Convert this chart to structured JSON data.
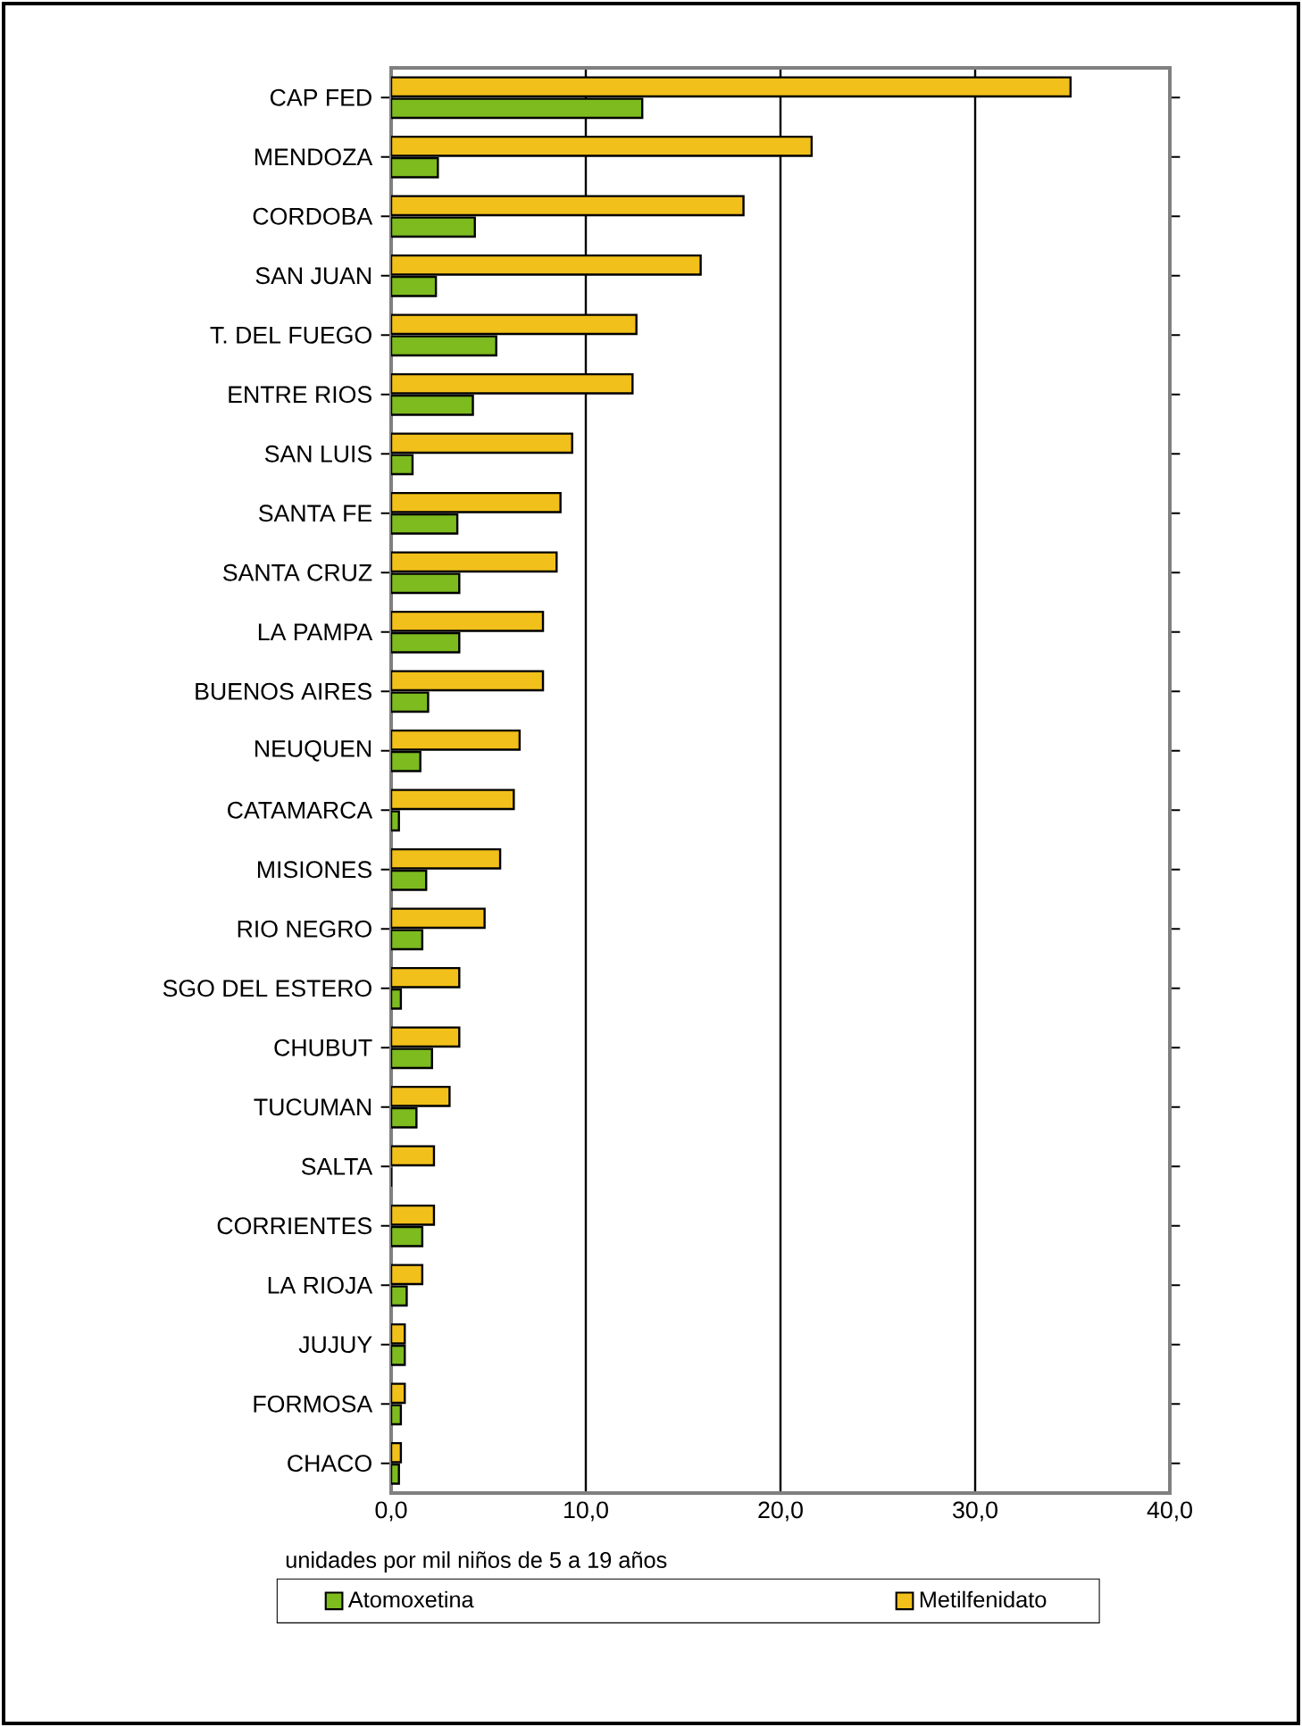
{
  "chart_data": {
    "type": "bar",
    "orientation": "horizontal",
    "xlabel": "unidades por mil niños de 5 a 19 años",
    "categories": [
      "CAP FED",
      "MENDOZA",
      "CORDOBA",
      "SAN JUAN",
      "T. DEL FUEGO",
      "ENTRE RIOS",
      "SAN LUIS",
      "SANTA FE",
      "SANTA CRUZ",
      "LA PAMPA",
      "BUENOS AIRES",
      "NEUQUEN",
      "CATAMARCA",
      "MISIONES",
      "RIO NEGRO",
      "SGO DEL ESTERO",
      "CHUBUT",
      "TUCUMAN",
      "SALTA",
      "CORRIENTES",
      "LA RIOJA",
      "JUJUY",
      "FORMOSA",
      "CHACO"
    ],
    "series": [
      {
        "name": "Atomoxetina",
        "color": "#7dbb1f",
        "values": [
          12.9,
          2.4,
          4.3,
          2.3,
          5.4,
          4.2,
          1.1,
          3.4,
          3.5,
          3.5,
          1.9,
          1.5,
          0.4,
          1.8,
          1.6,
          0.5,
          2.1,
          1.3,
          0,
          1.6,
          0.8,
          0.7,
          0.5,
          0.4
        ]
      },
      {
        "name": "Metilfenidato",
        "color": "#f2c01a",
        "values": [
          34.9,
          21.6,
          18.1,
          15.9,
          12.6,
          12.4,
          9.3,
          8.7,
          8.5,
          7.8,
          7.8,
          6.6,
          6.3,
          5.6,
          4.8,
          3.5,
          3.5,
          3.0,
          2.2,
          2.2,
          1.6,
          0.7,
          0.7,
          0.5
        ]
      }
    ],
    "xlim": [
      0,
      40
    ],
    "xticks": [
      {
        "value": 0,
        "label": "0,0"
      },
      {
        "value": 10,
        "label": "10,0"
      },
      {
        "value": 20,
        "label": "20,0"
      },
      {
        "value": 30,
        "label": "30,0"
      },
      {
        "value": 40,
        "label": "40,0"
      }
    ],
    "grid": "x",
    "legend": "bottom"
  }
}
